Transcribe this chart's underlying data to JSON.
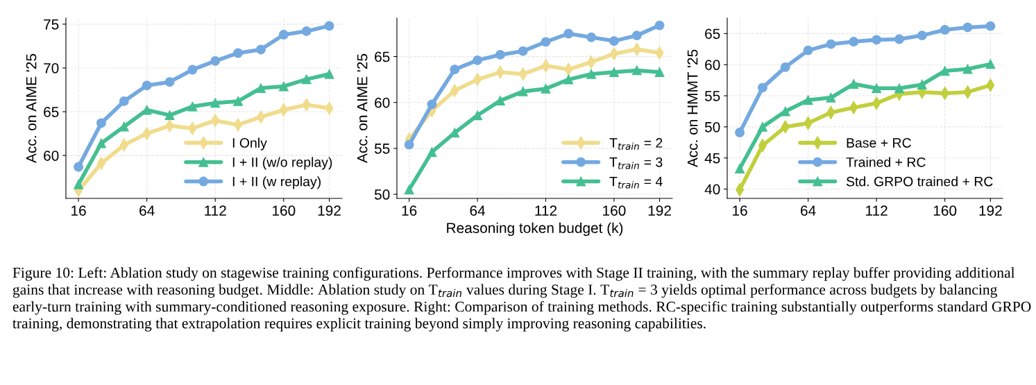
{
  "chart_data": [
    {
      "type": "line",
      "ylabel": "Acc. on AIME '25",
      "x": [
        16,
        32,
        48,
        64,
        80,
        96,
        112,
        128,
        144,
        160,
        176,
        192
      ],
      "xlim": [
        7.2,
        201
      ],
      "xticks": [
        16,
        64,
        112,
        160,
        192
      ],
      "ylim": [
        55.1,
        75.7
      ],
      "yticks": [
        60,
        65,
        70,
        75
      ],
      "grid": true,
      "legend": "bottom right",
      "series": [
        {
          "name": "I Only",
          "color": "#f0dc8c",
          "marker": "diamond",
          "values": [
            56.0,
            59.1,
            61.2,
            62.5,
            63.4,
            63.1,
            64.0,
            63.5,
            64.4,
            65.2,
            65.8,
            65.4
          ]
        },
        {
          "name": "I + II (w/o replay)",
          "color": "#44bf91",
          "marker": "triangle",
          "values": [
            56.7,
            61.4,
            63.3,
            65.2,
            64.6,
            65.6,
            66.0,
            66.2,
            67.7,
            67.9,
            68.7,
            69.3
          ]
        },
        {
          "name": "I + II (w replay)",
          "color": "#74a9e0",
          "marker": "circle",
          "values": [
            58.7,
            63.7,
            66.2,
            68.0,
            68.4,
            69.8,
            70.8,
            71.7,
            72.1,
            73.8,
            74.2,
            74.8
          ]
        }
      ]
    },
    {
      "type": "line",
      "ylabel": "Acc. on AIME '25",
      "xlabel": "Reasoning token budget (k)",
      "x": [
        16,
        32,
        48,
        64,
        80,
        96,
        112,
        128,
        144,
        160,
        176,
        192
      ],
      "xlim": [
        7.4,
        201
      ],
      "xticks": [
        16,
        64,
        112,
        160,
        192
      ],
      "ylim": [
        49.55,
        69.2
      ],
      "yticks": [
        50,
        55,
        60,
        65
      ],
      "grid": true,
      "legend": "bottom right",
      "series": [
        {
          "name": "T$_{train}$ = 2",
          "color": "#f0dc8c",
          "marker": "diamond",
          "values": [
            56.0,
            59.1,
            61.3,
            62.5,
            63.3,
            63.1,
            64.0,
            63.6,
            64.4,
            65.3,
            65.8,
            65.4
          ]
        },
        {
          "name": "T$_{train}$ = 3",
          "color": "#74a9e0",
          "marker": "circle",
          "values": [
            55.4,
            59.8,
            63.6,
            64.6,
            65.2,
            65.6,
            66.6,
            67.5,
            67.1,
            66.7,
            67.3,
            68.4
          ]
        },
        {
          "name": "T$_{train}$ = 4",
          "color": "#44bf91",
          "marker": "triangle",
          "values": [
            50.5,
            54.6,
            56.7,
            58.6,
            60.2,
            61.2,
            61.5,
            62.5,
            63.1,
            63.3,
            63.5,
            63.3
          ]
        }
      ]
    },
    {
      "type": "line",
      "ylabel": "Acc. on HMMT '25",
      "x": [
        16,
        32,
        48,
        64,
        80,
        96,
        112,
        128,
        144,
        160,
        176,
        192
      ],
      "xlim": [
        7.2,
        200.6
      ],
      "xticks": [
        16,
        64,
        112,
        160,
        192
      ],
      "ylim": [
        38.5,
        67.5
      ],
      "yticks": [
        40,
        45,
        50,
        55,
        60,
        65
      ],
      "grid": true,
      "legend": "bottom right",
      "series": [
        {
          "name": "Base + RC",
          "color": "#c1cf3c",
          "marker": "diamond",
          "values": [
            39.9,
            47.0,
            50.0,
            50.6,
            52.3,
            53.1,
            53.8,
            55.3,
            55.6,
            55.4,
            55.6,
            56.7
          ]
        },
        {
          "name": "Trained + RC",
          "color": "#74a9e0",
          "marker": "circle",
          "values": [
            49.1,
            56.3,
            59.6,
            62.3,
            63.3,
            63.7,
            64.0,
            64.1,
            64.7,
            65.6,
            66.0,
            66.2
          ]
        },
        {
          "name": "Std. GRPO trained + RC",
          "color": "#44bf91",
          "marker": "triangle",
          "values": [
            43.3,
            50.0,
            52.5,
            54.3,
            54.7,
            56.9,
            56.2,
            56.2,
            56.8,
            59.0,
            59.3,
            60.1
          ]
        }
      ],
      "annotations": [
        "Figure 10: Left: Ablation study on stagewise training configurations. Performance improves with Stage II training, with the summary replay buffer providing additional gains that increase with reasoning budget. Middle: Ablation study on T$_{train}$ values during Stage I. T$_{train}$ = 3 yields optimal performance across budgets by balancing early-turn training with summary-conditioned reasoning exposure. Right: Comparison of training methods. RC-specific training substantially outperforms standard GRPO training, demonstrating that extrapolation requires explicit training beyond simply improving reasoning capabilities."
      ]
    }
  ]
}
